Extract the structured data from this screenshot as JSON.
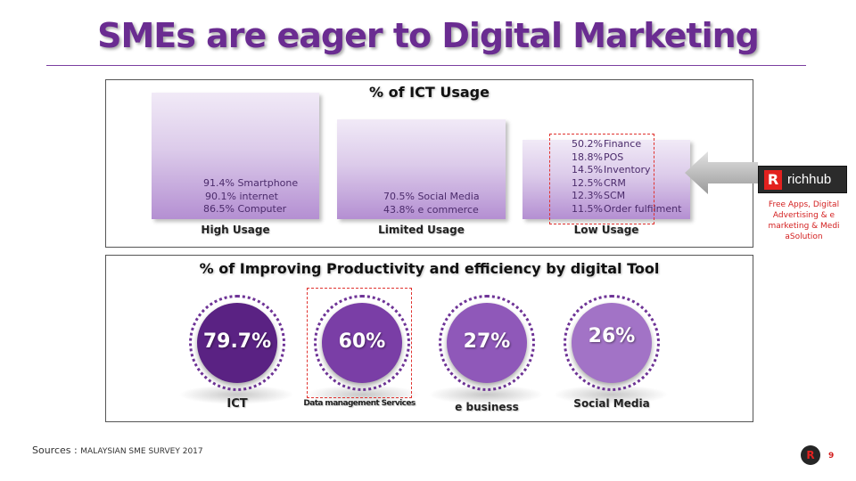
{
  "title": "SMEs are eager to Digital Marketing",
  "ict_usage": {
    "heading": "% of ICT Usage",
    "high": {
      "label": "High Usage",
      "lines": [
        "91.4% Smartphone",
        "90.1% internet",
        "86.5% Computer"
      ]
    },
    "limited": {
      "label": "Limited Usage",
      "lines": [
        "70.5% Social Media",
        "43.8% e commerce"
      ]
    },
    "low": {
      "label": "Low Usage",
      "items": [
        {
          "pct": "50.2%",
          "name": "Finance"
        },
        {
          "pct": "18.8%",
          "name": "POS"
        },
        {
          "pct": "14.5%",
          "name": "Inventory"
        },
        {
          "pct": "12.5%",
          "name": "CRM"
        },
        {
          "pct": "12.3%",
          "name": "SCM"
        },
        {
          "pct": "11.5%",
          "name": "Order fulfilment"
        }
      ]
    }
  },
  "brand": {
    "logo_letter": "R",
    "name": "richhub",
    "promo": "Free Apps, Digital Advertising & e marketing & Medi aSolution"
  },
  "productivity": {
    "heading": "% of Improving Productivity and efficiency by digital Tool",
    "tools": [
      {
        "value": "79.7%",
        "label": "ICT",
        "color": "#5a2283"
      },
      {
        "value": "60%",
        "label": "Data management Services",
        "color": "#7a3ea6"
      },
      {
        "value": "27%",
        "label": "e business",
        "color": "#8f58b9"
      },
      {
        "value": "26%",
        "label": "Social Media",
        "color": "#a273c6"
      }
    ]
  },
  "sources": {
    "prefix": "Sources : ",
    "text": "MALAYSIAN SME SURVEY 2017"
  },
  "footer": {
    "logo_letter": "R",
    "page_number": "9"
  },
  "colors": {
    "title": "#6a2c91",
    "accent_red": "#e3211f"
  }
}
